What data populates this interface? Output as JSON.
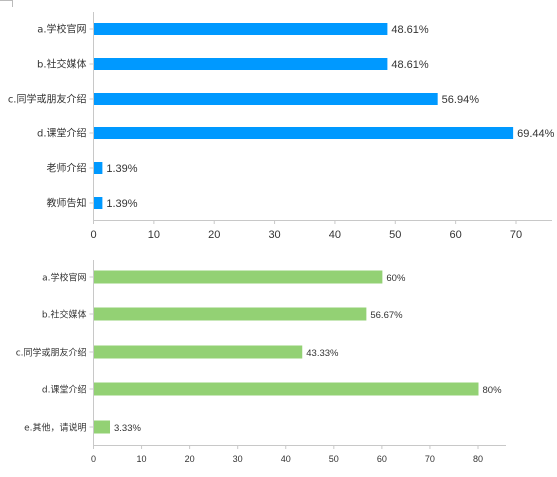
{
  "chart_data": [
    {
      "type": "bar",
      "orientation": "horizontal",
      "categories": [
        "a.学校官网",
        "b.社交媒体",
        "c.同学或朋友介绍",
        "d.课堂介绍",
        "老师介绍",
        "教师告知"
      ],
      "values": [
        48.61,
        48.61,
        56.94,
        69.44,
        1.39,
        1.39
      ],
      "labels": [
        "48.61%",
        "48.61%",
        "56.94%",
        "69.44%",
        "1.39%",
        "1.39%"
      ],
      "xlim": [
        0,
        70
      ],
      "xticks": [
        "0",
        "10",
        "20",
        "30",
        "40",
        "50",
        "60",
        "70"
      ],
      "color": "#0099ff",
      "grid": false
    },
    {
      "type": "bar",
      "orientation": "horizontal",
      "categories": [
        "a.学校官网",
        "b.社交媒体",
        "c.同学或朋友介绍",
        "d.课堂介绍",
        "e.其他，请说明"
      ],
      "values": [
        60,
        56.67,
        43.33,
        80,
        3.33
      ],
      "labels": [
        "60%",
        "56.67%",
        "43.33%",
        "80%",
        "3.33%"
      ],
      "xlim": [
        0,
        80
      ],
      "xticks": [
        "0",
        "10",
        "20",
        "30",
        "40",
        "50",
        "60",
        "70",
        "80"
      ],
      "color": "#93d174",
      "grid": false
    }
  ]
}
